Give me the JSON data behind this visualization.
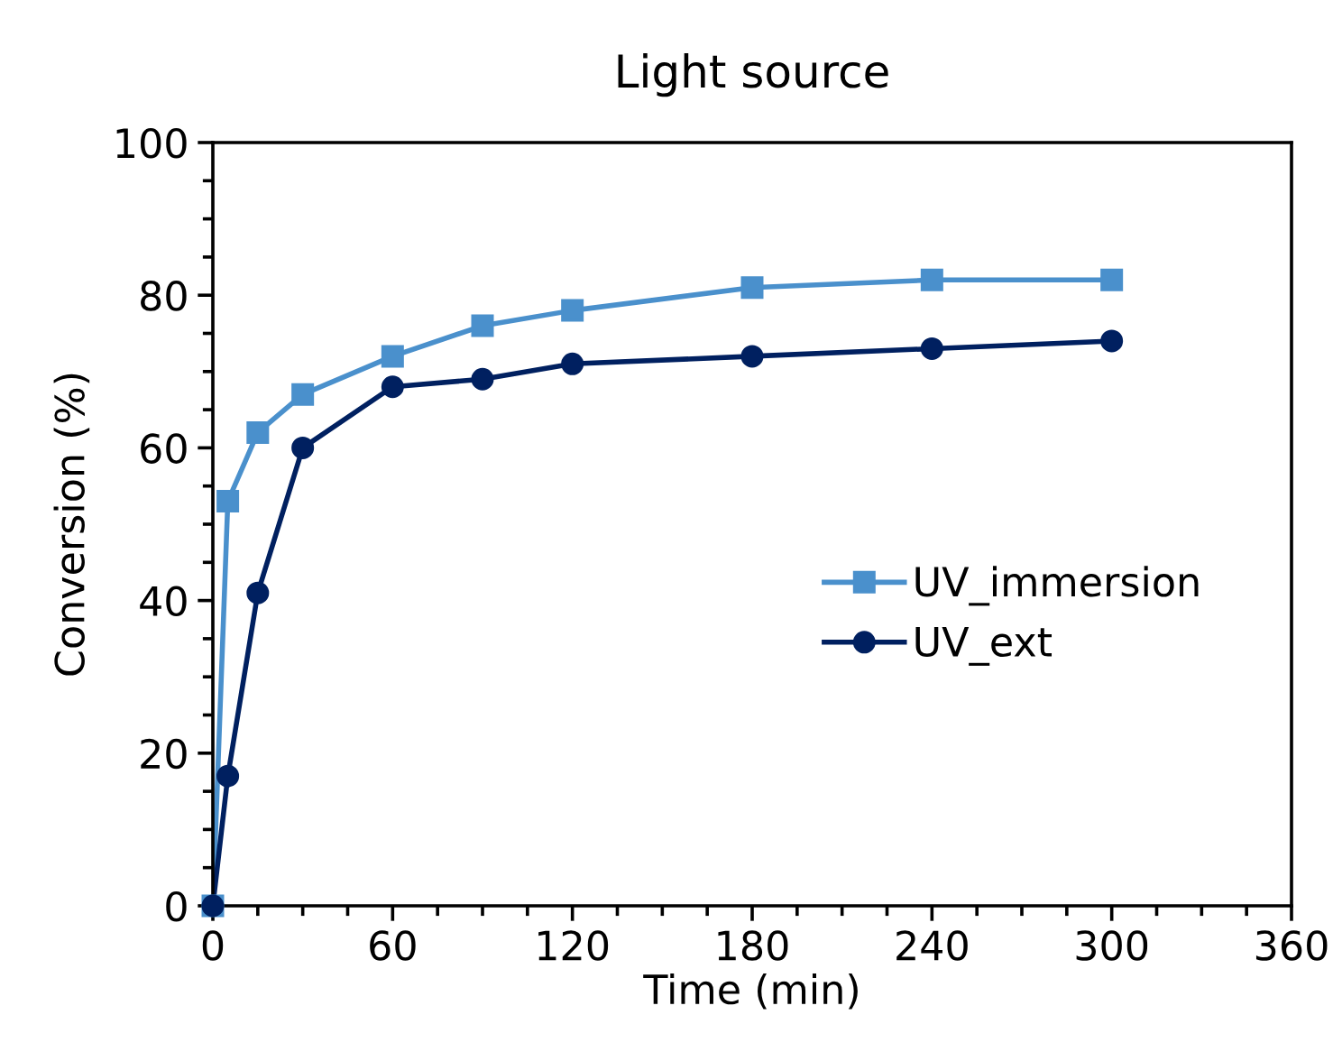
{
  "chart_data": {
    "type": "line",
    "title": "Light source",
    "xlabel": "Time (min)",
    "ylabel": "Conversion (%)",
    "xlim": [
      0,
      360
    ],
    "xticks": [
      0,
      60,
      120,
      180,
      240,
      300,
      360
    ],
    "ylim": [
      0,
      100
    ],
    "yticks": [
      0,
      20,
      40,
      60,
      80,
      100
    ],
    "legend": "right",
    "grid": false,
    "series": [
      {
        "name": "UV_immersion",
        "color": "#4a90cc",
        "marker": "square",
        "x": [
          0,
          5,
          15,
          30,
          60,
          90,
          120,
          180,
          240,
          300
        ],
        "values": [
          0,
          53,
          62,
          67,
          72,
          76,
          78,
          81,
          82,
          82
        ]
      },
      {
        "name": "UV_ext",
        "color": "#002060",
        "marker": "circle",
        "x": [
          0,
          5,
          15,
          30,
          60,
          90,
          120,
          180,
          240,
          300
        ],
        "values": [
          0,
          17,
          41,
          60,
          68,
          69,
          71,
          72,
          73,
          74
        ]
      }
    ]
  }
}
